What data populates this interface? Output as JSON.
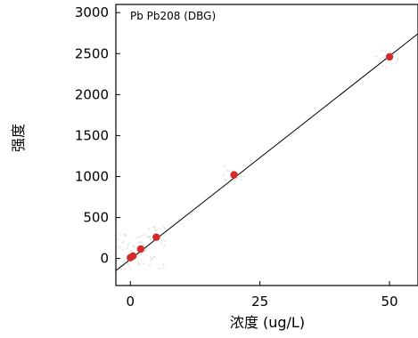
{
  "chart_data": {
    "type": "scatter",
    "title": "",
    "series_label": "Pb Pb208 (DBG)",
    "xlabel": "浓度 (ug/L)",
    "ylabel": "强度",
    "xlim": [
      -2.8,
      55.5
    ],
    "ylim": [
      -330,
      3100
    ],
    "x_ticks": [
      0,
      25,
      50
    ],
    "y_ticks": [
      0,
      500,
      1000,
      1500,
      2000,
      2500,
      3000
    ],
    "grid": false,
    "points": [
      {
        "x": 0,
        "y": 10
      },
      {
        "x": 0.5,
        "y": 30
      },
      {
        "x": 2,
        "y": 115
      },
      {
        "x": 5,
        "y": 260
      },
      {
        "x": 20,
        "y": 1020
      },
      {
        "x": 50,
        "y": 2460
      }
    ],
    "fit_line": {
      "slope": 49.6,
      "intercept": -10
    },
    "colors": {
      "point": "#d42a2a",
      "line": "#000000",
      "axis": "#000000"
    }
  }
}
